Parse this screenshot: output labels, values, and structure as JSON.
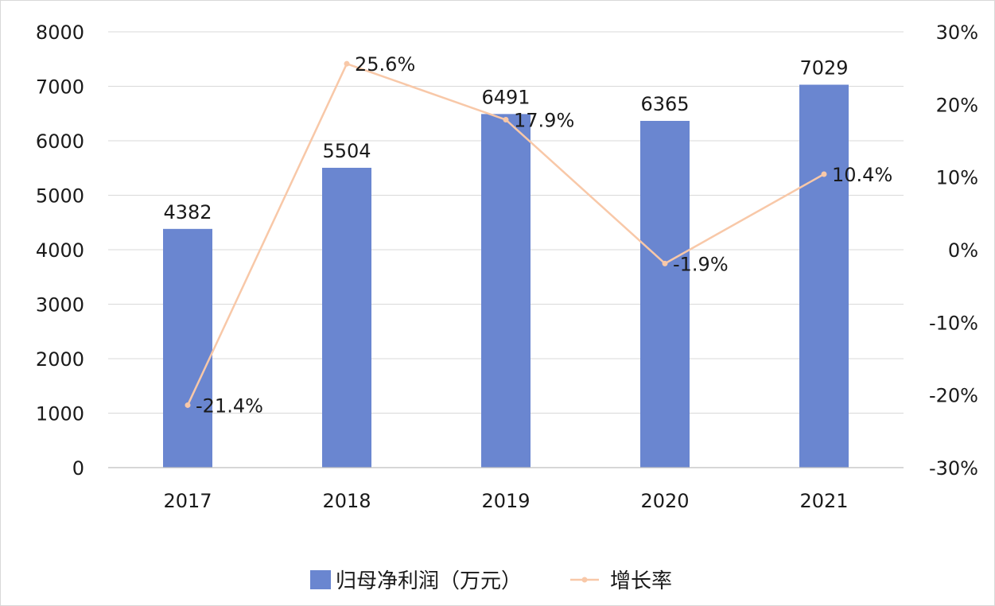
{
  "chart_data": {
    "type": "bar",
    "categories": [
      "2017",
      "2018",
      "2019",
      "2020",
      "2021"
    ],
    "series": [
      {
        "name": "归母净利润（万元）",
        "type": "bar",
        "axis": "left",
        "color": "#6a86d0",
        "values": [
          4382,
          5504,
          6491,
          6365,
          7029
        ],
        "labels": [
          "4382",
          "5504",
          "6491",
          "6365",
          "7029"
        ]
      },
      {
        "name": "增长率",
        "type": "line",
        "axis": "right",
        "color": "#f8c8a8",
        "values": [
          -21.4,
          25.6,
          17.9,
          -1.9,
          10.4
        ],
        "labels": [
          "-21.4%",
          "25.6%",
          "17.9%",
          "-1.9%",
          "10.4%"
        ]
      }
    ],
    "y_left": {
      "min": 0,
      "max": 8000,
      "ticks": [
        "0",
        "1000",
        "2000",
        "3000",
        "4000",
        "5000",
        "6000",
        "7000",
        "8000"
      ]
    },
    "y_right": {
      "min": -30,
      "max": 30,
      "ticks": [
        "-30%",
        "-20%",
        "-10%",
        "0%",
        "10%",
        "20%",
        "30%"
      ]
    },
    "grid": true,
    "legend_position": "bottom"
  }
}
